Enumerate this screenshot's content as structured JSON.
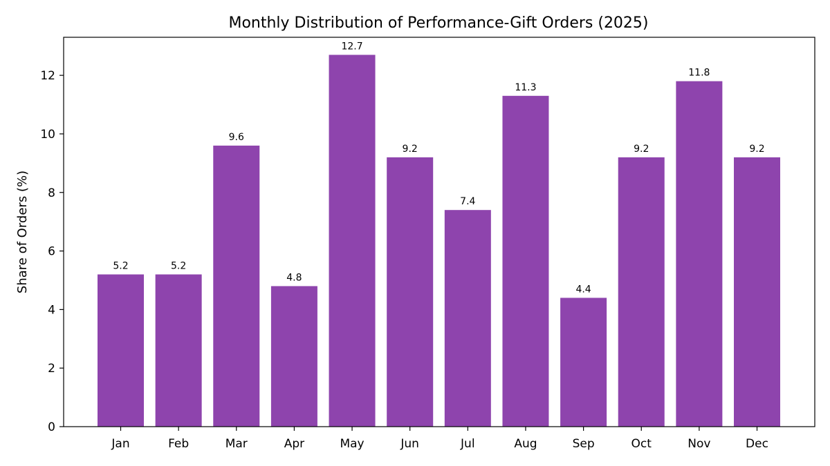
{
  "chart_data": {
    "type": "bar",
    "title": "Monthly Distribution of Performance-Gift Orders (2025)",
    "xlabel": "",
    "ylabel": "Share of Orders (%)",
    "categories": [
      "Jan",
      "Feb",
      "Mar",
      "Apr",
      "May",
      "Jun",
      "Jul",
      "Aug",
      "Sep",
      "Oct",
      "Nov",
      "Dec"
    ],
    "values": [
      5.2,
      5.2,
      9.6,
      4.8,
      12.7,
      9.2,
      7.4,
      11.3,
      4.4,
      9.2,
      11.8,
      9.2
    ],
    "data_labels": [
      "5.2",
      "5.2",
      "9.6",
      "4.8",
      "12.7",
      "9.2",
      "7.4",
      "11.3",
      "4.4",
      "9.2",
      "11.8",
      "9.2"
    ],
    "yticks": [
      0,
      2,
      4,
      6,
      8,
      10,
      12
    ],
    "ylim": [
      0,
      13.3
    ],
    "bar_color": "#8e44ad",
    "grid": false,
    "legend": "none"
  }
}
